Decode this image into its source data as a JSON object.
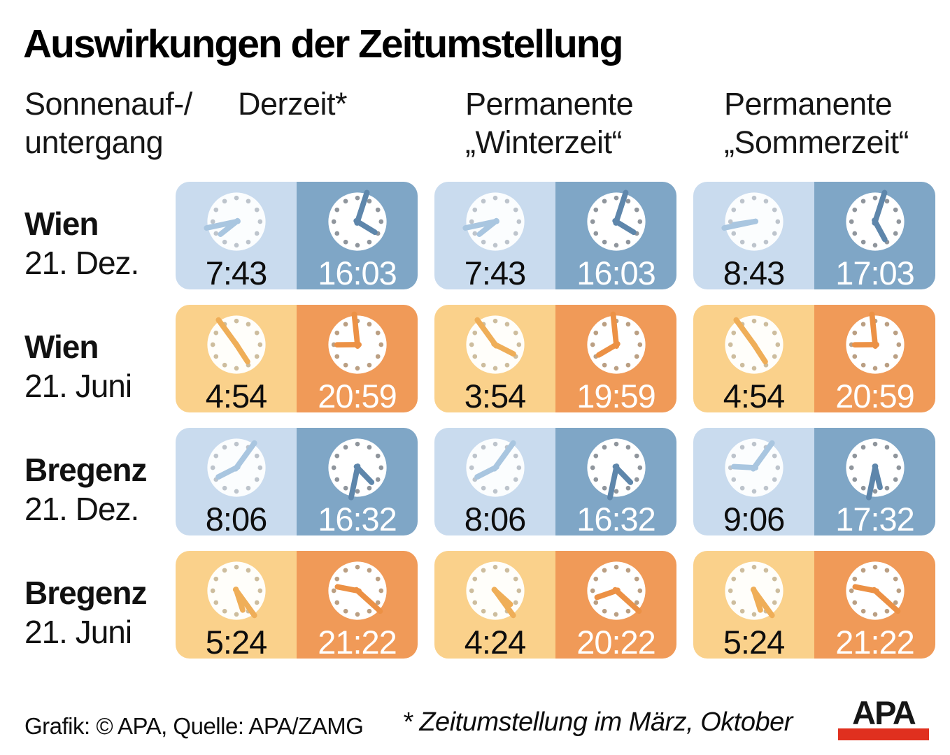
{
  "title": "Auswirkungen der Zeitumstellung",
  "header": {
    "row_label_line1": "Sonnenauf-/",
    "row_label_line2": "untergang",
    "columns": [
      {
        "line1": "Derzeit*",
        "line2": ""
      },
      {
        "line1": "Permanente",
        "line2": "„Winterzeit“"
      },
      {
        "line1": "Permanente",
        "line2": "„Sommerzeit“"
      }
    ]
  },
  "rows": [
    {
      "city": "Wien",
      "date": "21. Dez.",
      "season": "winter",
      "cells": [
        {
          "sunrise": "7:43",
          "sunset": "16:03"
        },
        {
          "sunrise": "7:43",
          "sunset": "16:03"
        },
        {
          "sunrise": "8:43",
          "sunset": "17:03"
        }
      ]
    },
    {
      "city": "Wien",
      "date": "21. Juni",
      "season": "summer",
      "cells": [
        {
          "sunrise": "4:54",
          "sunset": "20:59"
        },
        {
          "sunrise": "3:54",
          "sunset": "19:59"
        },
        {
          "sunrise": "4:54",
          "sunset": "20:59"
        }
      ]
    },
    {
      "city": "Bregenz",
      "date": "21. Dez.",
      "season": "winter",
      "cells": [
        {
          "sunrise": "8:06",
          "sunset": "16:32"
        },
        {
          "sunrise": "8:06",
          "sunset": "16:32"
        },
        {
          "sunrise": "9:06",
          "sunset": "17:32"
        }
      ]
    },
    {
      "city": "Bregenz",
      "date": "21. Juni",
      "season": "summer",
      "cells": [
        {
          "sunrise": "5:24",
          "sunset": "21:22"
        },
        {
          "sunrise": "4:24",
          "sunset": "20:22"
        },
        {
          "sunrise": "5:24",
          "sunset": "21:22"
        }
      ]
    }
  ],
  "footer": {
    "credit": "Grafik: © APA, Quelle: APA/ZAMG",
    "footnote": "* Zeitumstellung im März, Oktober",
    "logo_text": "APA"
  },
  "icons": {
    "clock_icon": "analog-clock"
  },
  "colors": {
    "winter_light": "#C9DBEE",
    "winter_dark": "#7FA6C6",
    "summer_light": "#FAD18B",
    "summer_dark": "#F09A58",
    "logo_red": "#E0301F"
  },
  "chart_data": {
    "type": "table",
    "title": "Auswirkungen der Zeitumstellung",
    "row_header": "Sonnenauf-/untergang",
    "columns": [
      "Derzeit*",
      "Permanente „Winterzeit“",
      "Permanente „Sommerzeit“"
    ],
    "rows": [
      {
        "label": "Wien 21. Dez.",
        "values": [
          {
            "sunrise": "7:43",
            "sunset": "16:03"
          },
          {
            "sunrise": "7:43",
            "sunset": "16:03"
          },
          {
            "sunrise": "8:43",
            "sunset": "17:03"
          }
        ]
      },
      {
        "label": "Wien 21. Juni",
        "values": [
          {
            "sunrise": "4:54",
            "sunset": "20:59"
          },
          {
            "sunrise": "3:54",
            "sunset": "19:59"
          },
          {
            "sunrise": "4:54",
            "sunset": "20:59"
          }
        ]
      },
      {
        "label": "Bregenz 21. Dez.",
        "values": [
          {
            "sunrise": "8:06",
            "sunset": "16:32"
          },
          {
            "sunrise": "8:06",
            "sunset": "16:32"
          },
          {
            "sunrise": "9:06",
            "sunset": "17:32"
          }
        ]
      },
      {
        "label": "Bregenz 21. Juni",
        "values": [
          {
            "sunrise": "5:24",
            "sunset": "21:22"
          },
          {
            "sunrise": "4:24",
            "sunset": "20:22"
          },
          {
            "sunrise": "5:24",
            "sunset": "21:22"
          }
        ]
      }
    ],
    "footnote": "* Zeitumstellung im März, Oktober",
    "source": "Grafik: © APA, Quelle: APA/ZAMG"
  }
}
